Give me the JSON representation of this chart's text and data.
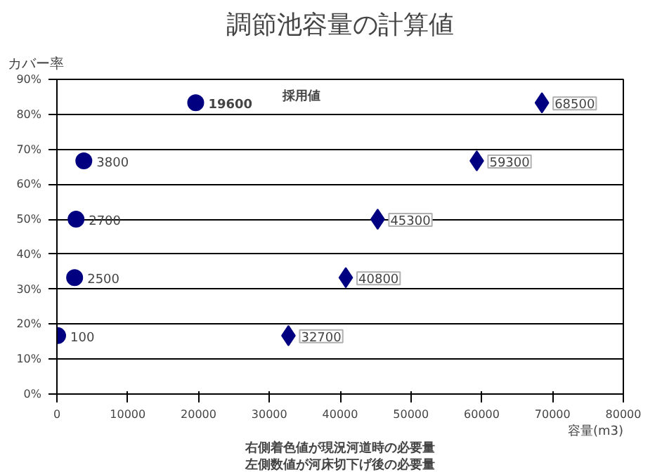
{
  "chart_data": {
    "type": "scatter",
    "title": "調節池容量の計算値",
    "xlabel": "容量(m3)",
    "ylabel": "カバー率",
    "xlim": [
      0,
      80000
    ],
    "xticks": [
      0,
      10000,
      20000,
      30000,
      40000,
      50000,
      60000,
      70000,
      80000
    ],
    "ylim": [
      0,
      90
    ],
    "yticks": [
      {
        "value": 0,
        "label": "0%"
      },
      {
        "value": 10,
        "label": "10%"
      },
      {
        "value": 20,
        "label": "20%"
      },
      {
        "value": 30,
        "label": "30%"
      },
      {
        "value": 40,
        "label": "40%"
      },
      {
        "value": 50,
        "label": "50%"
      },
      {
        "value": 60,
        "label": "60%"
      },
      {
        "value": 70,
        "label": "70%"
      },
      {
        "value": 80,
        "label": "80%"
      },
      {
        "value": 90,
        "label": "90%"
      }
    ],
    "grid": "y",
    "series": [
      {
        "color": "#000080",
        "marker": "circle",
        "x": [
          100,
          2500,
          2700,
          3800,
          19600
        ],
        "values": [
          16.7,
          33.3,
          50,
          66.7,
          83.3
        ]
      },
      {
        "color": "#000080",
        "marker": "diamond",
        "x": [
          32700,
          40800,
          45300,
          59300,
          68500
        ],
        "values": [
          16.7,
          33.3,
          50,
          66.7,
          83.3
        ]
      }
    ],
    "annotations": [
      {
        "text": "100",
        "x": 100,
        "y": 16.7
      },
      {
        "text": "2500",
        "x": 2500,
        "y": 33.3
      },
      {
        "text": "2700",
        "x": 2700,
        "y": 50
      },
      {
        "text": "3800",
        "x": 3800,
        "y": 66.7
      },
      {
        "text": "19600",
        "x": 19600,
        "y": 83.3
      },
      {
        "text": "32700",
        "x": 32700,
        "y": 16.7
      },
      {
        "text": "40800",
        "x": 40800,
        "y": 33.3
      },
      {
        "text": "45300",
        "x": 45300,
        "y": 50
      },
      {
        "text": "59300",
        "x": 59300,
        "y": 66.7
      },
      {
        "text": "68500",
        "x": 68500,
        "y": 83.3
      },
      "採用値",
      "右側着色値が現況河道時の必要量",
      "左側数値が河床切下げ後の必要量"
    ]
  }
}
